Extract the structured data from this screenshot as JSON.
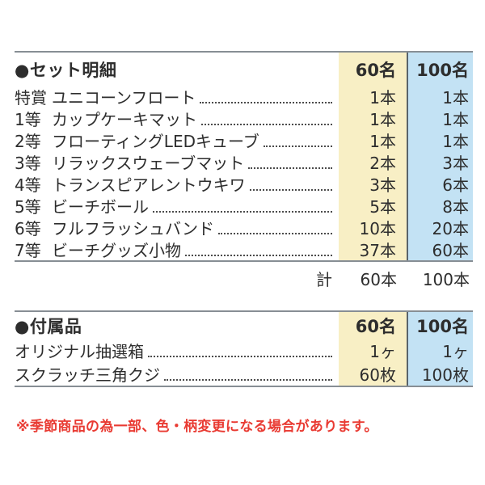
{
  "colors": {
    "col60_bg": "#F8EFC5",
    "col100_bg": "#C3E2F4",
    "line_gray": "#878E94",
    "divider": "#59636B",
    "text": "#2d2d2d",
    "note_red": "#E93B33"
  },
  "set_table": {
    "title": "●セット明細",
    "col_headers": [
      "60名",
      "100名"
    ],
    "rows": [
      {
        "rank": "特賞",
        "item": "ユニコーンフロート",
        "v60": "1本",
        "v100": "1本"
      },
      {
        "rank": "1等",
        "item": "カップケーキマット",
        "v60": "1本",
        "v100": "1本"
      },
      {
        "rank": "2等",
        "item": "フローティングLEDキューブ",
        "v60": "1本",
        "v100": "1本"
      },
      {
        "rank": "3等",
        "item": "リラックスウェーブマット",
        "v60": "2本",
        "v100": "3本"
      },
      {
        "rank": "4等",
        "item": "トランスピアレントウキワ",
        "v60": "3本",
        "v100": "6本"
      },
      {
        "rank": "5等",
        "item": "ビーチボール",
        "v60": "5本",
        "v100": "8本"
      },
      {
        "rank": "6等",
        "item": "フルフラッシュバンド",
        "v60": "10本",
        "v100": "20本"
      },
      {
        "rank": "7等",
        "item": "ビーチグッズ小物",
        "v60": "37本",
        "v100": "60本"
      }
    ],
    "total": {
      "label": "計",
      "v60": "60本",
      "v100": "100本"
    }
  },
  "accessory_table": {
    "title": "●付属品",
    "col_headers": [
      "60名",
      "100名"
    ],
    "rows": [
      {
        "item": "オリジナル抽選箱",
        "v60": "1ヶ",
        "v100": "1ヶ"
      },
      {
        "item": "スクラッチ三角クジ",
        "v60": "60枚",
        "v100": "100枚"
      }
    ]
  },
  "note": "※季節商品の為一部、色・柄変更になる場合があります。"
}
